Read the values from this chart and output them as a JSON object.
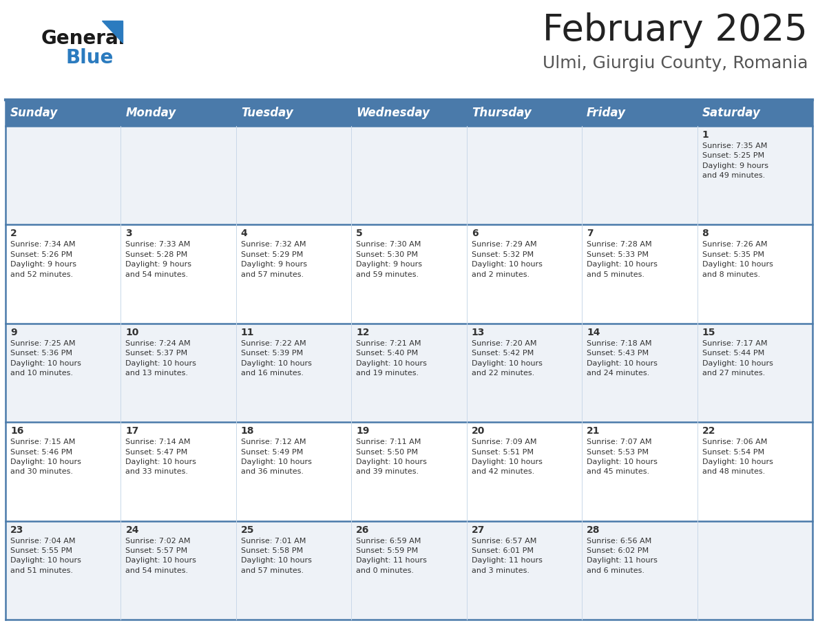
{
  "title": "February 2025",
  "subtitle": "Ulmi, Giurgiu County, Romania",
  "header_bg": "#4a7aaa",
  "header_text": "#ffffff",
  "cell_bg_light": "#eef2f7",
  "cell_bg_white": "#ffffff",
  "border_color": "#4a7aaa",
  "thin_border": "#c8d8e8",
  "days_of_week": [
    "Sunday",
    "Monday",
    "Tuesday",
    "Wednesday",
    "Thursday",
    "Friday",
    "Saturday"
  ],
  "weeks": [
    [
      {
        "day": null,
        "info": null
      },
      {
        "day": null,
        "info": null
      },
      {
        "day": null,
        "info": null
      },
      {
        "day": null,
        "info": null
      },
      {
        "day": null,
        "info": null
      },
      {
        "day": null,
        "info": null
      },
      {
        "day": 1,
        "info": "Sunrise: 7:35 AM\nSunset: 5:25 PM\nDaylight: 9 hours\nand 49 minutes."
      }
    ],
    [
      {
        "day": 2,
        "info": "Sunrise: 7:34 AM\nSunset: 5:26 PM\nDaylight: 9 hours\nand 52 minutes."
      },
      {
        "day": 3,
        "info": "Sunrise: 7:33 AM\nSunset: 5:28 PM\nDaylight: 9 hours\nand 54 minutes."
      },
      {
        "day": 4,
        "info": "Sunrise: 7:32 AM\nSunset: 5:29 PM\nDaylight: 9 hours\nand 57 minutes."
      },
      {
        "day": 5,
        "info": "Sunrise: 7:30 AM\nSunset: 5:30 PM\nDaylight: 9 hours\nand 59 minutes."
      },
      {
        "day": 6,
        "info": "Sunrise: 7:29 AM\nSunset: 5:32 PM\nDaylight: 10 hours\nand 2 minutes."
      },
      {
        "day": 7,
        "info": "Sunrise: 7:28 AM\nSunset: 5:33 PM\nDaylight: 10 hours\nand 5 minutes."
      },
      {
        "day": 8,
        "info": "Sunrise: 7:26 AM\nSunset: 5:35 PM\nDaylight: 10 hours\nand 8 minutes."
      }
    ],
    [
      {
        "day": 9,
        "info": "Sunrise: 7:25 AM\nSunset: 5:36 PM\nDaylight: 10 hours\nand 10 minutes."
      },
      {
        "day": 10,
        "info": "Sunrise: 7:24 AM\nSunset: 5:37 PM\nDaylight: 10 hours\nand 13 minutes."
      },
      {
        "day": 11,
        "info": "Sunrise: 7:22 AM\nSunset: 5:39 PM\nDaylight: 10 hours\nand 16 minutes."
      },
      {
        "day": 12,
        "info": "Sunrise: 7:21 AM\nSunset: 5:40 PM\nDaylight: 10 hours\nand 19 minutes."
      },
      {
        "day": 13,
        "info": "Sunrise: 7:20 AM\nSunset: 5:42 PM\nDaylight: 10 hours\nand 22 minutes."
      },
      {
        "day": 14,
        "info": "Sunrise: 7:18 AM\nSunset: 5:43 PM\nDaylight: 10 hours\nand 24 minutes."
      },
      {
        "day": 15,
        "info": "Sunrise: 7:17 AM\nSunset: 5:44 PM\nDaylight: 10 hours\nand 27 minutes."
      }
    ],
    [
      {
        "day": 16,
        "info": "Sunrise: 7:15 AM\nSunset: 5:46 PM\nDaylight: 10 hours\nand 30 minutes."
      },
      {
        "day": 17,
        "info": "Sunrise: 7:14 AM\nSunset: 5:47 PM\nDaylight: 10 hours\nand 33 minutes."
      },
      {
        "day": 18,
        "info": "Sunrise: 7:12 AM\nSunset: 5:49 PM\nDaylight: 10 hours\nand 36 minutes."
      },
      {
        "day": 19,
        "info": "Sunrise: 7:11 AM\nSunset: 5:50 PM\nDaylight: 10 hours\nand 39 minutes."
      },
      {
        "day": 20,
        "info": "Sunrise: 7:09 AM\nSunset: 5:51 PM\nDaylight: 10 hours\nand 42 minutes."
      },
      {
        "day": 21,
        "info": "Sunrise: 7:07 AM\nSunset: 5:53 PM\nDaylight: 10 hours\nand 45 minutes."
      },
      {
        "day": 22,
        "info": "Sunrise: 7:06 AM\nSunset: 5:54 PM\nDaylight: 10 hours\nand 48 minutes."
      }
    ],
    [
      {
        "day": 23,
        "info": "Sunrise: 7:04 AM\nSunset: 5:55 PM\nDaylight: 10 hours\nand 51 minutes."
      },
      {
        "day": 24,
        "info": "Sunrise: 7:02 AM\nSunset: 5:57 PM\nDaylight: 10 hours\nand 54 minutes."
      },
      {
        "day": 25,
        "info": "Sunrise: 7:01 AM\nSunset: 5:58 PM\nDaylight: 10 hours\nand 57 minutes."
      },
      {
        "day": 26,
        "info": "Sunrise: 6:59 AM\nSunset: 5:59 PM\nDaylight: 11 hours\nand 0 minutes."
      },
      {
        "day": 27,
        "info": "Sunrise: 6:57 AM\nSunset: 6:01 PM\nDaylight: 11 hours\nand 3 minutes."
      },
      {
        "day": 28,
        "info": "Sunrise: 6:56 AM\nSunset: 6:02 PM\nDaylight: 11 hours\nand 6 minutes."
      },
      {
        "day": null,
        "info": null
      }
    ]
  ],
  "text_color": "#333333",
  "day_number_color": "#333333",
  "title_color": "#222222",
  "subtitle_color": "#555555",
  "logo_general_color": "#1a1a1a",
  "logo_blue_color": "#2b7bbf",
  "title_fontsize": 38,
  "subtitle_fontsize": 18,
  "header_fontsize": 12,
  "day_num_fontsize": 10,
  "cell_fontsize": 8
}
